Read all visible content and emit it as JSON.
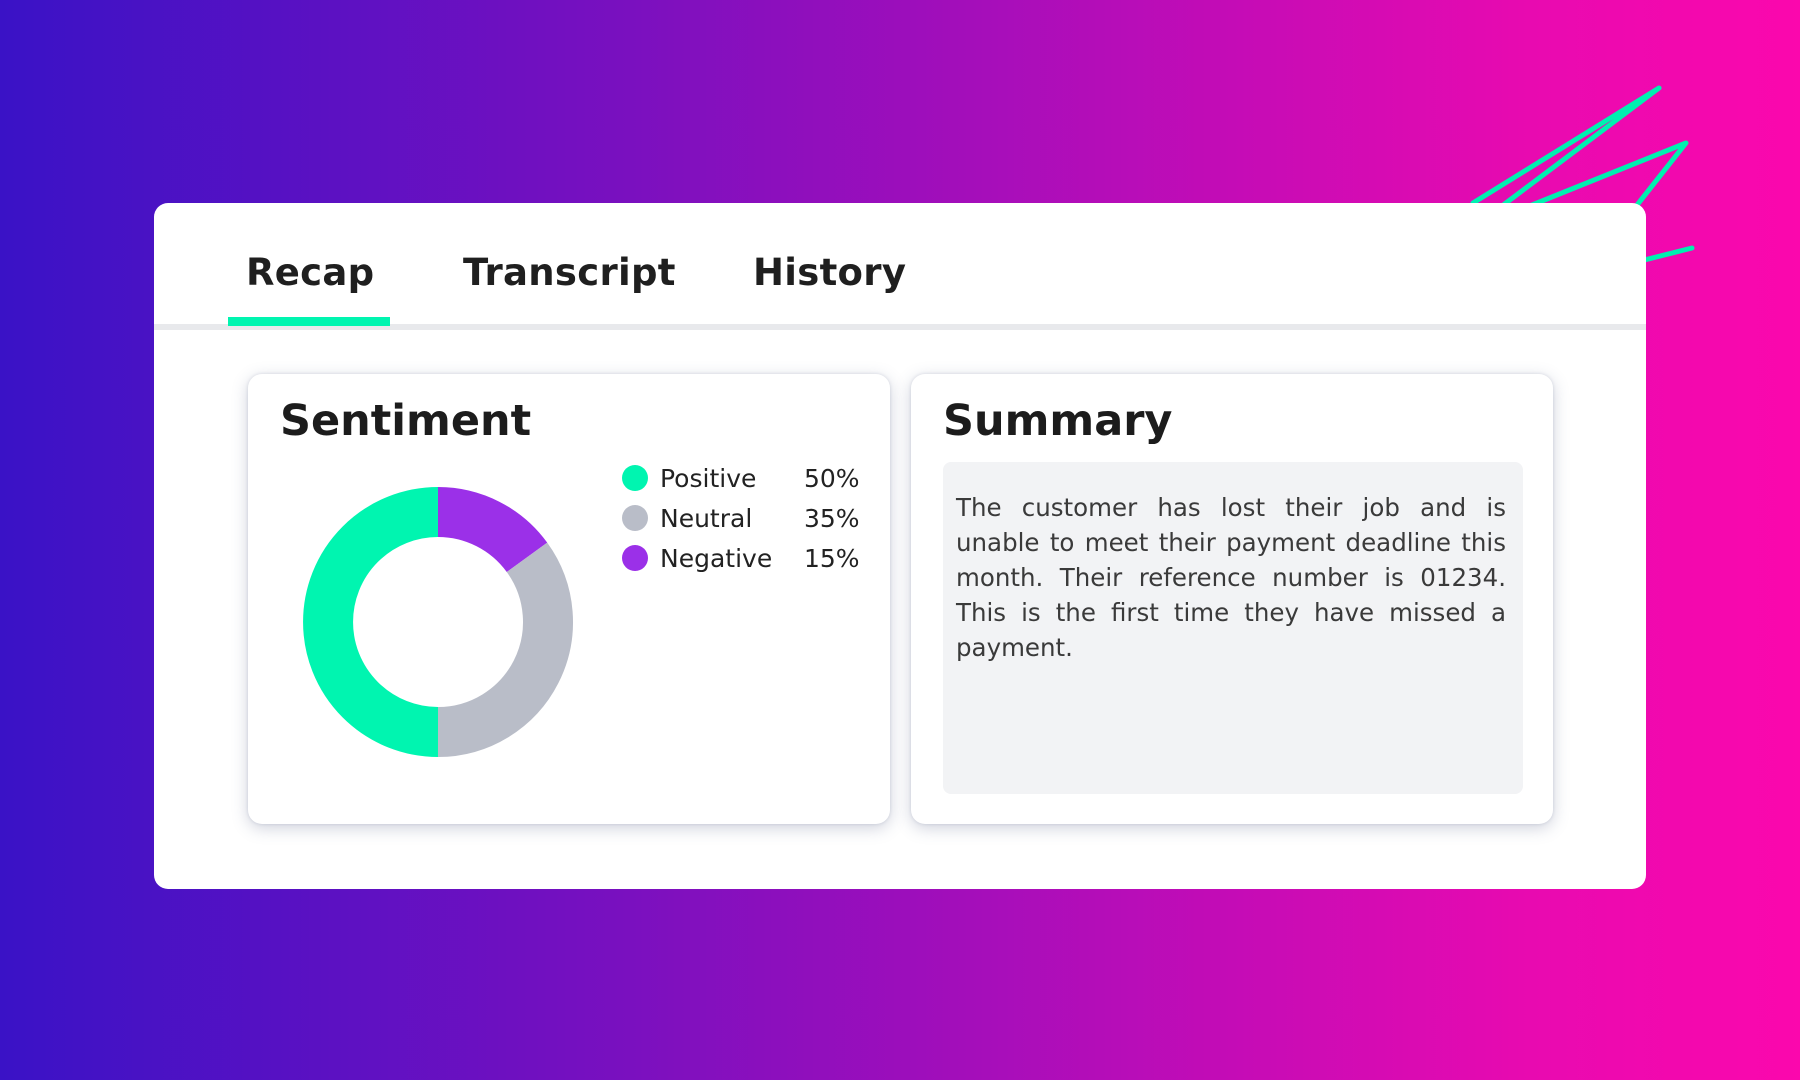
{
  "tabs": {
    "recap": "Recap",
    "transcript": "Transcript",
    "history": "History"
  },
  "sentiment": {
    "title": "Sentiment",
    "items": [
      {
        "label": "Positive",
        "value_text": "50%"
      },
      {
        "label": "Neutral",
        "value_text": "35%"
      },
      {
        "label": "Negative",
        "value_text": "15%"
      }
    ]
  },
  "summary": {
    "title": "Summary",
    "text": "The customer has lost their job and is unable to meet their payment deadline this month. Their reference number is 01234. This is the first time they have missed a payment."
  },
  "colors": {
    "accent": "#00f5b0",
    "positive": "#00f5b0",
    "neutral": "#b9bdc8",
    "negative": "#9b30e8",
    "background_start": "#3a12c6",
    "background_end": "#fb07ad"
  },
  "chart_data": {
    "type": "pie",
    "categories": [
      "Positive",
      "Neutral",
      "Negative"
    ],
    "values": [
      50,
      35,
      15
    ],
    "title": "Sentiment",
    "legend": "right"
  }
}
